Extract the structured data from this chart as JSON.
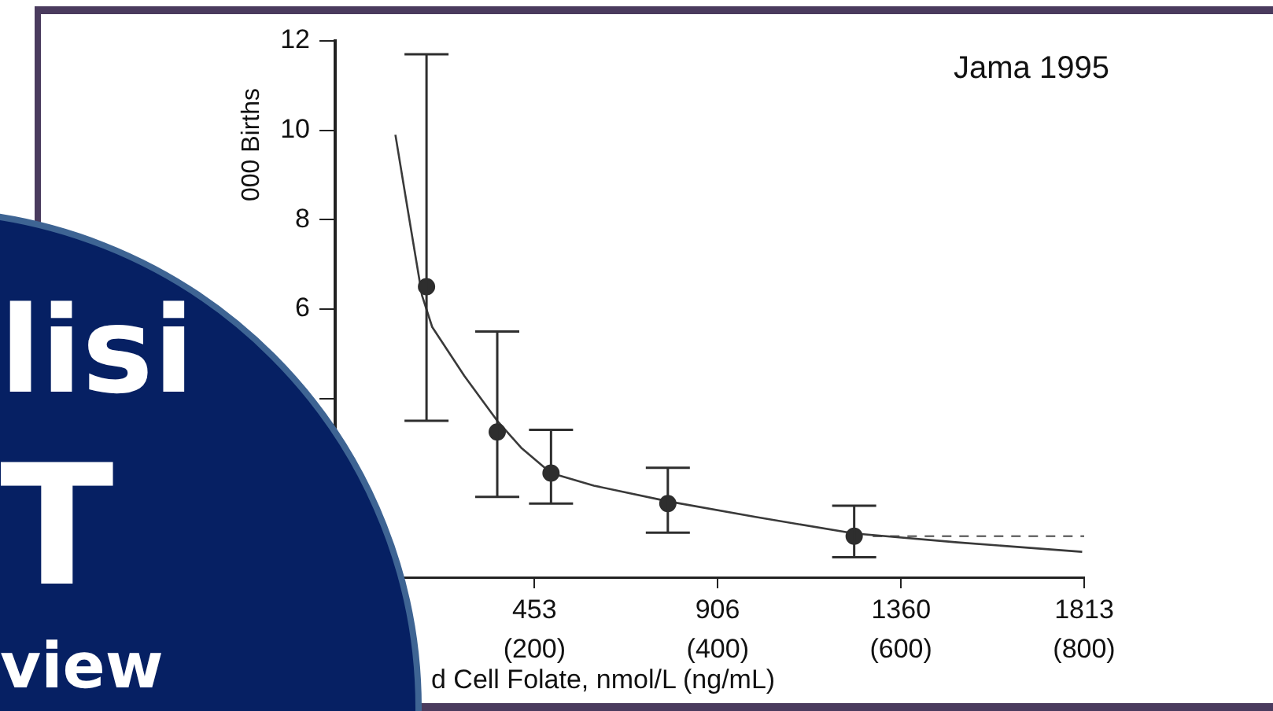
{
  "chart_data": {
    "type": "scatter",
    "title": "Jama 1995",
    "ylabel": "000 Births",
    "xlabel": "d Cell Folate, nmol/L (ng/mL)",
    "annotations": [
      "lisi",
      "T",
      "view"
    ],
    "xlim": [
      -40,
      1813
    ],
    "xticks": [
      453,
      906,
      1360,
      1813
    ],
    "x2lim": [
      -17.65,
      800
    ],
    "x2ticks": [
      {
        "value": 200,
        "label": "(200)"
      },
      {
        "value": 400,
        "label": "(400)"
      },
      {
        "value": 600,
        "label": "(600)"
      },
      {
        "value": 800,
        "label": "(800)"
      }
    ],
    "ylim": [
      0,
      12
    ],
    "yticks": [
      {
        "value": 4,
        "label": null
      },
      6,
      8,
      10,
      12
    ],
    "grid": false,
    "legend": false,
    "series": [
      {
        "type": "scatter",
        "marker": "circle",
        "color": "#2e2e2e",
        "x": [
          186,
          361,
          494,
          783,
          1244
        ],
        "values": [
          6.5,
          3.25,
          2.33,
          1.65,
          0.92
        ],
        "errors": [
          [
            3.5,
            11.7
          ],
          [
            1.8,
            5.5
          ],
          [
            1.65,
            3.3
          ],
          [
            1.0,
            2.45
          ],
          [
            0.45,
            1.6
          ]
        ]
      },
      {
        "type": "line",
        "marker": "none",
        "line_style": "solid",
        "color": "#3a3a3a",
        "x": [
          109,
          140,
          175,
          200,
          280,
          361,
          420,
          494,
          600,
          783,
          1000,
          1244,
          1500,
          1808
        ],
        "values": [
          9.9,
          8.2,
          6.3,
          5.6,
          4.5,
          3.5,
          2.9,
          2.33,
          2.05,
          1.7,
          1.35,
          0.98,
          0.78,
          0.57
        ]
      },
      {
        "type": "line",
        "marker": "none",
        "line_style": "dashed",
        "color": "#6a6a6a",
        "x": [
          1290,
          1813
        ],
        "values": [
          0.92,
          0.92
        ]
      }
    ]
  }
}
